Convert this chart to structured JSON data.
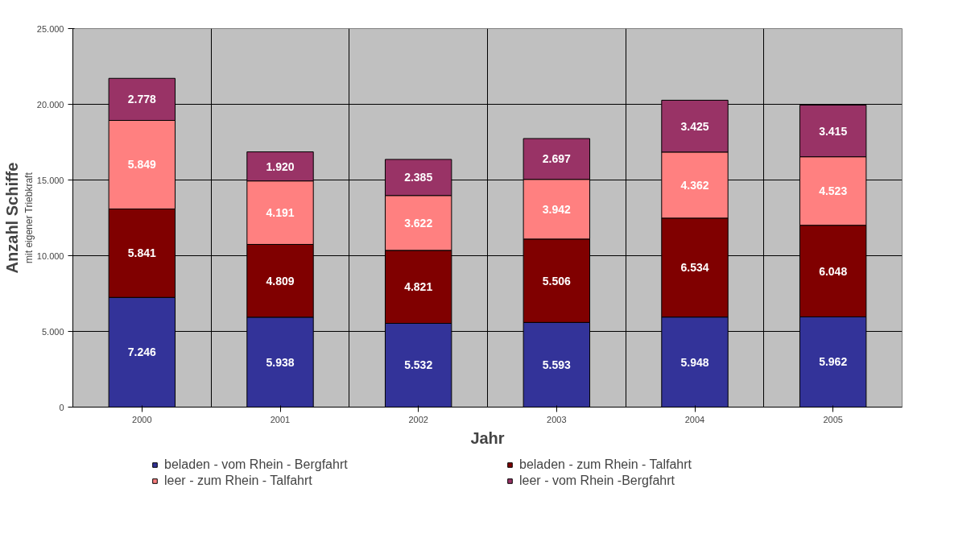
{
  "chart_data": {
    "type": "bar",
    "stacked": true,
    "xlabel": "Jahr",
    "ylabel": "Anzahl Schiffe",
    "annotations": [
      "mit eigener Triebkraft"
    ],
    "categories": [
      "2000",
      "2001",
      "2002",
      "2003",
      "2004",
      "2005"
    ],
    "ylim": [
      0,
      25000
    ],
    "yticks": [
      {
        "value": 0,
        "label": "0"
      },
      {
        "value": 5000,
        "label": "5.000"
      },
      {
        "value": 10000,
        "label": "10.000"
      },
      {
        "value": 15000,
        "label": "15.000"
      },
      {
        "value": 20000,
        "label": "20.000"
      },
      {
        "value": 25000,
        "label": "25.000"
      }
    ],
    "grid": true,
    "legend": "bottom",
    "series": [
      {
        "name": "beladen - vom Rhein - Bergfahrt",
        "color": "#333399",
        "values": [
          7246,
          5938,
          5532,
          5593,
          5948,
          5962
        ],
        "value_labels": [
          "7.246",
          "5.938",
          "5.532",
          "5.593",
          "5.948",
          "5.962"
        ]
      },
      {
        "name": "beladen - zum Rhein - Talfahrt",
        "color": "#800000",
        "values": [
          5841,
          4809,
          4821,
          5506,
          6534,
          6048
        ],
        "value_labels": [
          "5.841",
          "4.809",
          "4.821",
          "5.506",
          "6.534",
          "6.048"
        ]
      },
      {
        "name": "leer - zum Rhein - Talfahrt",
        "color": "#ff8080",
        "values": [
          5849,
          4191,
          3622,
          3942,
          4362,
          4523
        ],
        "value_labels": [
          "5.849",
          "4.191",
          "3.622",
          "3.942",
          "4.362",
          "4.523"
        ]
      },
      {
        "name": "leer - vom Rhein -Bergfahrt",
        "color": "#993366",
        "values": [
          2778,
          1920,
          2385,
          2697,
          3425,
          3415
        ],
        "value_labels": [
          "2.778",
          "1.920",
          "2.385",
          "2.697",
          "3.425",
          "3.415"
        ]
      }
    ]
  }
}
